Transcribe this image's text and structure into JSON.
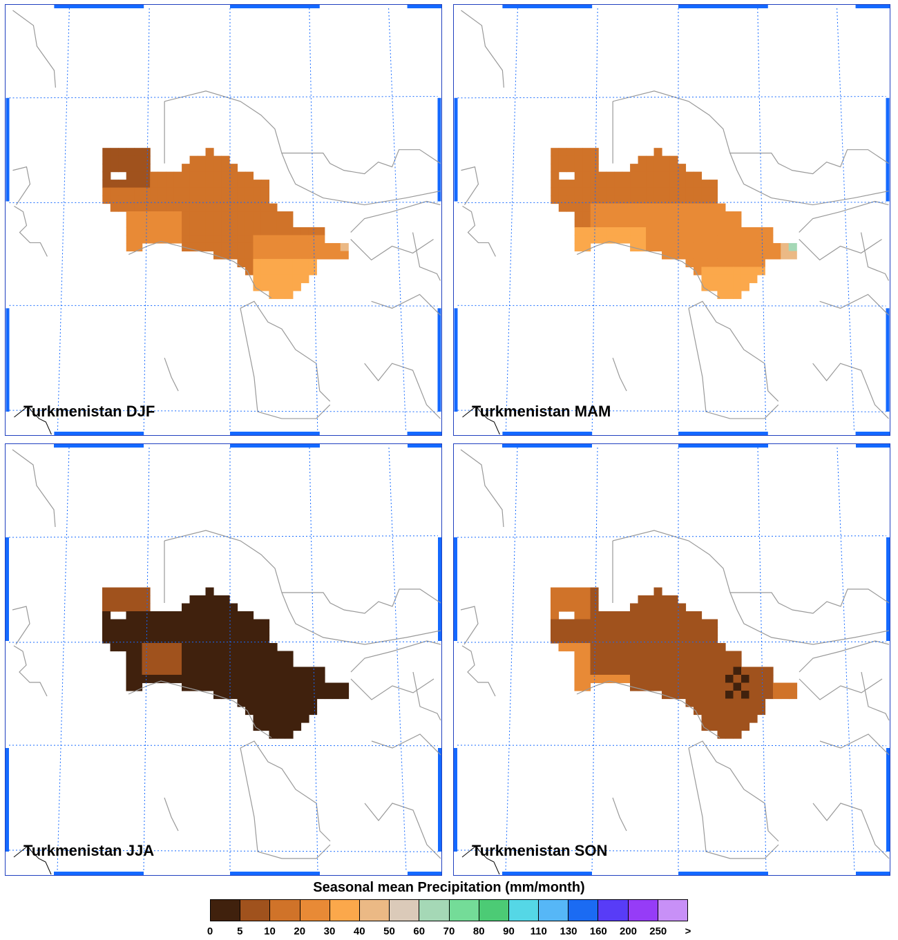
{
  "panels": [
    {
      "id": "djf",
      "title": "Turkmenistan DJF"
    },
    {
      "id": "mam",
      "title": "Turkmenistan MAM"
    },
    {
      "id": "jja",
      "title": "Turkmenistan JJA"
    },
    {
      "id": "son",
      "title": "Turkmenistan SON"
    }
  ],
  "legend": {
    "title": "Seasonal mean Precipitation (mm/month)",
    "colors": [
      "#40210d",
      "#a0521d",
      "#d07329",
      "#e88a36",
      "#fba84b",
      "#ebb985",
      "#dbcab9",
      "#a5d8b6",
      "#74dc98",
      "#4ccb75",
      "#55d7e6",
      "#56b7f7",
      "#1b6bf3",
      "#583cf7",
      "#963cf7",
      "#c890f7"
    ],
    "labels": [
      "0",
      "5",
      "10",
      "20",
      "30",
      "40",
      "50",
      "60",
      "70",
      "80",
      "90",
      "110",
      "130",
      "160",
      "200",
      "250",
      ">"
    ]
  }
}
